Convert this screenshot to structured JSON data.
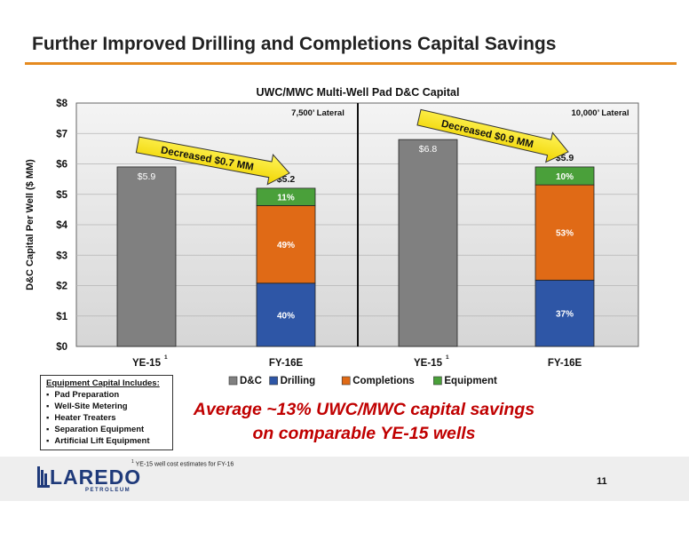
{
  "slide": {
    "title": "Further Improved Drilling and Completions Capital Savings",
    "page_number": "11",
    "footnote_mark": "1",
    "footnote": "YE-15 well cost estimates for FY-16",
    "savings_line1": "Average ~13% UWC/MWC capital savings",
    "savings_line2": "on comparable YE-15 wells",
    "logo_main": "LAREDO",
    "logo_sub": "PETROLEUM"
  },
  "equipment_box": {
    "heading": "Equipment Capital Includes:",
    "items": [
      "Pad Preparation",
      "Well-Site Metering",
      "Heater Treaters",
      "Separation Equipment",
      "Artificial Lift Equipment"
    ]
  },
  "chart_data": {
    "type": "bar",
    "stacked": true,
    "title": "UWC/MWC Multi-Well Pad D&C Capital",
    "ylabel": "D&C Capital Per Well ($ MM)",
    "ylim": [
      0,
      8
    ],
    "yticks": [
      0,
      1,
      2,
      3,
      4,
      5,
      6,
      7,
      8
    ],
    "ytick_labels": [
      "$0",
      "$1",
      "$2",
      "$3",
      "$4",
      "$5",
      "$6",
      "$7",
      "$8"
    ],
    "categories": [
      "YE-15",
      "FY-16E",
      "YE-15",
      "FY-16E"
    ],
    "category_superscripts": [
      "1",
      "",
      "1",
      ""
    ],
    "groups": [
      "7,500’ Lateral",
      "10,000’ Lateral"
    ],
    "grid": true,
    "legend_position": "bottom",
    "series": [
      {
        "name": "D&C",
        "color": "#808080",
        "values": [
          5.9,
          0,
          6.8,
          0
        ]
      },
      {
        "name": "Drilling",
        "color": "#2e56a6",
        "values": [
          0,
          2.08,
          0,
          2.18
        ]
      },
      {
        "name": "Completions",
        "color": "#e06a16",
        "values": [
          0,
          2.55,
          0,
          3.13
        ]
      },
      {
        "name": "Equipment",
        "color": "#4aa03a",
        "values": [
          0,
          0.57,
          0,
          0.59
        ]
      }
    ],
    "total_labels": [
      "$5.9",
      "$5.2",
      "$6.8",
      "$5.9"
    ],
    "segment_labels": [
      {
        "bar": 1,
        "series": 1,
        "text": "40%"
      },
      {
        "bar": 1,
        "series": 2,
        "text": "49%"
      },
      {
        "bar": 1,
        "series": 3,
        "text": "11%"
      },
      {
        "bar": 3,
        "series": 1,
        "text": "37%"
      },
      {
        "bar": 3,
        "series": 2,
        "text": "53%"
      },
      {
        "bar": 3,
        "series": 3,
        "text": "10%"
      }
    ],
    "annotations": [
      {
        "text": "Decreased $0.7 MM",
        "from_bar": 0,
        "to_bar": 1
      },
      {
        "text": "Decreased $0.9 MM",
        "from_bar": 2,
        "to_bar": 3
      }
    ]
  }
}
